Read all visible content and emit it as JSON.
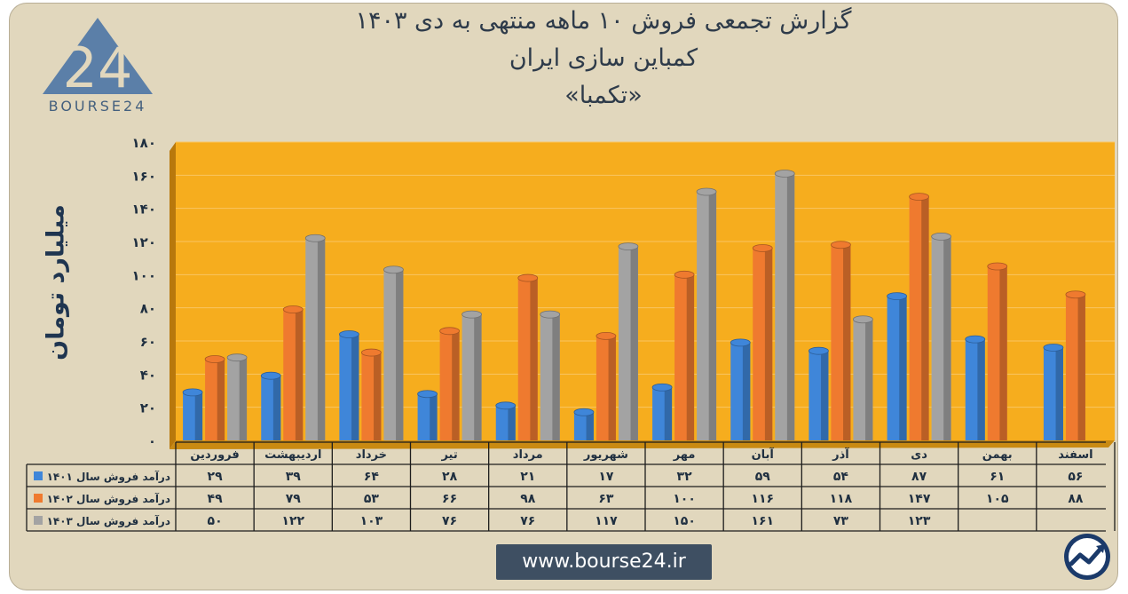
{
  "header": {
    "title_line1": "گزارش تجمعی فروش ۱۰ ماهه منتهی به دی ۱۴۰۳",
    "title_line2": "کمباین سازی ایران",
    "title_line3": "«تکمبا»"
  },
  "logo": {
    "text": "BOURSE24",
    "mark": "24"
  },
  "footer": {
    "url": "www.bourse24.ir"
  },
  "icons": {
    "logo": "bourse24-logo-icon",
    "badge": "trend-up-icon"
  },
  "colors": {
    "plot_bg": "#f6ad1e",
    "series": [
      "#3f86d9",
      "#ef7a2f",
      "#a3a3a3"
    ],
    "axis_text": "#1f2f40"
  },
  "chart_data": {
    "type": "bar",
    "ylabel": "میلیارد تومان",
    "ylim": [
      0,
      180
    ],
    "yticks": [
      "۰",
      "۲۰",
      "۴۰",
      "۶۰",
      "۸۰",
      "۱۰۰",
      "۱۲۰",
      "۱۴۰",
      "۱۶۰",
      "۱۸۰"
    ],
    "ytick_values": [
      0,
      20,
      40,
      60,
      80,
      100,
      120,
      140,
      160,
      180
    ],
    "legend": "table-left",
    "categories": [
      "فروردین",
      "اردیبهشت",
      "خرداد",
      "تیر",
      "مرداد",
      "شهریور",
      "مهر",
      "آبان",
      "آذر",
      "دی",
      "بهمن",
      "اسفند"
    ],
    "series": [
      {
        "name": "درآمد فروش سال ۱۴۰۱",
        "values": [
          29,
          39,
          64,
          28,
          21,
          17,
          32,
          59,
          54,
          87,
          61,
          56
        ],
        "labels": [
          "۲۹",
          "۳۹",
          "۶۴",
          "۲۸",
          "۲۱",
          "۱۷",
          "۳۲",
          "۵۹",
          "۵۴",
          "۸۷",
          "۶۱",
          "۵۶"
        ]
      },
      {
        "name": "درآمد فروش سال ۱۴۰۲",
        "values": [
          49,
          79,
          53,
          66,
          98,
          63,
          100,
          116,
          118,
          147,
          105,
          88
        ],
        "labels": [
          "۴۹",
          "۷۹",
          "۵۳",
          "۶۶",
          "۹۸",
          "۶۳",
          "۱۰۰",
          "۱۱۶",
          "۱۱۸",
          "۱۴۷",
          "۱۰۵",
          "۸۸"
        ]
      },
      {
        "name": "درآمد فروش سال ۱۴۰۳",
        "values": [
          50,
          122,
          103,
          76,
          76,
          117,
          150,
          161,
          73,
          123,
          null,
          null
        ],
        "labels": [
          "۵۰",
          "۱۲۲",
          "۱۰۳",
          "۷۶",
          "۷۶",
          "۱۱۷",
          "۱۵۰",
          "۱۶۱",
          "۷۳",
          "۱۲۳",
          "",
          ""
        ]
      }
    ]
  }
}
